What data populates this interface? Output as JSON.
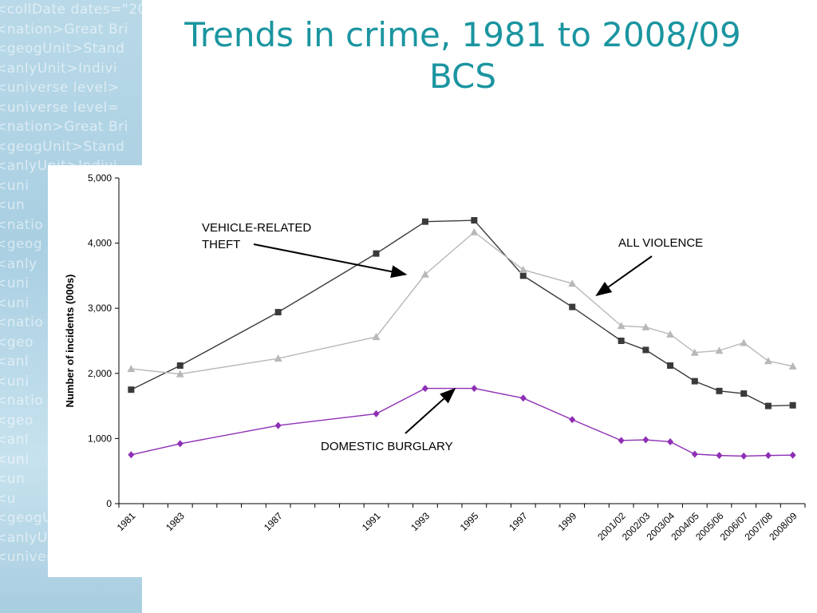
{
  "slide": {
    "title_line1": "Trends in crime, 1981 to 2008/09",
    "title_line2": "BCS"
  },
  "decor_lines": [
    "<collDate dates=\"20",
    "<nation>Great Bri",
    "<geogUnit>Stand",
    "<anlyUnit>Indivi",
    "<universe level>",
    "<universe level=",
    "<nation>Great Bri",
    "<geogUnit>Stand",
    "<anlyUnit>Indivi",
    "<uni",
    "<un",
    "<natio",
    "<geog",
    "<anly",
    "<uni",
    "<uni",
    "<natio",
    "<geo",
    "<anl",
    "<uni",
    "<natio",
    "<geo",
    "<anl",
    "<uni",
    "<un",
    "<u",
    "<geogUn",
    "<anlyUnit>I",
    "<universe l"
  ],
  "colors": {
    "title": "#1a95a0",
    "vehicle": "#3a3a3a",
    "violence": "#b8b8b8",
    "burglary": "#8e2fb5",
    "axis": "#000000"
  },
  "chart_data": {
    "type": "line",
    "title": "",
    "ylabel": "Number of incidents (000s)",
    "xlabel": "",
    "ylim": [
      0,
      5000
    ],
    "yticks": [
      "0",
      "1,000",
      "2,000",
      "3,000",
      "4,000",
      "5,000"
    ],
    "ytick_values": [
      0,
      1000,
      2000,
      3000,
      4000,
      5000
    ],
    "xticks": [
      "1981",
      "1983",
      "1987",
      "1991",
      "1993",
      "1995",
      "1997",
      "1999",
      "2001/02",
      "2002/03",
      "2003/04",
      "2004/05",
      "2005/06",
      "2006/07",
      "2007/08",
      "2008/09"
    ],
    "xtick_slots": [
      1,
      3,
      7,
      11,
      13,
      15,
      17,
      19,
      21,
      22,
      23,
      24,
      25,
      26,
      27,
      28
    ],
    "x_slots": 28,
    "series": [
      {
        "name": "VEHICLE-RELATED THEFT",
        "marker": "square",
        "color_key": "vehicle",
        "points": [
          {
            "slot": 1.0,
            "y": 1750
          },
          {
            "slot": 3.0,
            "y": 2120
          },
          {
            "slot": 7.0,
            "y": 2940
          },
          {
            "slot": 11.0,
            "y": 3840
          },
          {
            "slot": 13.0,
            "y": 4330
          },
          {
            "slot": 15.0,
            "y": 4350
          },
          {
            "slot": 17.0,
            "y": 3500
          },
          {
            "slot": 19.0,
            "y": 3020
          },
          {
            "slot": 21.0,
            "y": 2500
          },
          {
            "slot": 22.0,
            "y": 2360
          },
          {
            "slot": 23.0,
            "y": 2120
          },
          {
            "slot": 24.0,
            "y": 1880
          },
          {
            "slot": 25.0,
            "y": 1730
          },
          {
            "slot": 26.0,
            "y": 1690
          },
          {
            "slot": 27.0,
            "y": 1500
          },
          {
            "slot": 28.0,
            "y": 1510
          }
        ]
      },
      {
        "name": "ALL VIOLENCE",
        "marker": "triangle",
        "color_key": "violence",
        "points": [
          {
            "slot": 1.0,
            "y": 2070
          },
          {
            "slot": 3.0,
            "y": 1990
          },
          {
            "slot": 7.0,
            "y": 2230
          },
          {
            "slot": 11.0,
            "y": 2560
          },
          {
            "slot": 13.0,
            "y": 3520
          },
          {
            "slot": 15.0,
            "y": 4170
          },
          {
            "slot": 17.0,
            "y": 3590
          },
          {
            "slot": 19.0,
            "y": 3380
          },
          {
            "slot": 21.0,
            "y": 2730
          },
          {
            "slot": 22.0,
            "y": 2710
          },
          {
            "slot": 23.0,
            "y": 2600
          },
          {
            "slot": 24.0,
            "y": 2320
          },
          {
            "slot": 25.0,
            "y": 2350
          },
          {
            "slot": 26.0,
            "y": 2470
          },
          {
            "slot": 27.0,
            "y": 2190
          },
          {
            "slot": 28.0,
            "y": 2110
          }
        ]
      },
      {
        "name": "DOMESTIC BURGLARY",
        "marker": "diamond",
        "color_key": "burglary",
        "points": [
          {
            "slot": 1.0,
            "y": 750
          },
          {
            "slot": 3.0,
            "y": 920
          },
          {
            "slot": 7.0,
            "y": 1200
          },
          {
            "slot": 11.0,
            "y": 1380
          },
          {
            "slot": 13.0,
            "y": 1770
          },
          {
            "slot": 15.0,
            "y": 1770
          },
          {
            "slot": 17.0,
            "y": 1620
          },
          {
            "slot": 19.0,
            "y": 1290
          },
          {
            "slot": 21.0,
            "y": 970
          },
          {
            "slot": 22.0,
            "y": 980
          },
          {
            "slot": 23.0,
            "y": 950
          },
          {
            "slot": 24.0,
            "y": 760
          },
          {
            "slot": 25.0,
            "y": 740
          },
          {
            "slot": 26.0,
            "y": 730
          },
          {
            "slot": 27.0,
            "y": 740
          },
          {
            "slot": 28.0,
            "y": 745
          }
        ]
      }
    ],
    "annotations": [
      {
        "lines": [
          "VEHICLE-RELATED",
          "THEFT"
        ],
        "anchor": "left",
        "arrow_to": {
          "slot": 12.2,
          "y": 3520
        }
      },
      {
        "lines": [
          "ALL VIOLENCE"
        ],
        "anchor": "left",
        "arrow_to": {
          "slot": 20.0,
          "y": 3200
        }
      },
      {
        "lines": [
          "DOMESTIC BURGLARY"
        ],
        "anchor": "left",
        "arrow_to": {
          "slot": 14.2,
          "y": 1760
        }
      }
    ]
  }
}
